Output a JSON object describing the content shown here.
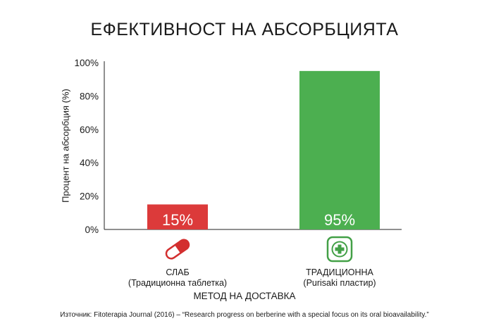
{
  "chart_data": {
    "type": "bar",
    "title": "ЕФЕКТИВНОСТ НА АБСОРБЦИЯТА",
    "xlabel": "МЕТОД НА ДОСТАВКА",
    "ylabel": "Процент на абсорбция (%)",
    "ylim": [
      0,
      100
    ],
    "yticks": [
      "0%",
      "20%",
      "40%",
      "60%",
      "80%",
      "100%"
    ],
    "ytick_values": [
      0,
      20,
      40,
      60,
      80,
      100
    ],
    "grid": false,
    "categories": [
      {
        "line1": "СЛАБ",
        "line2": "(Традиционна таблетка)",
        "icon": "pill-capsule-icon"
      },
      {
        "line1": "ТРАДИЦИОННА",
        "line2": "(Purisaki пластир)",
        "icon": "medical-cross-patch-icon"
      }
    ],
    "values": [
      15,
      95
    ],
    "data_labels": [
      "15%",
      "95%"
    ],
    "colors": [
      "#dc3a3a",
      "#4caf50"
    ]
  },
  "source": "Източник: Fitoterapia Journal (2016) – “Research progress on berberine with a special focus on its oral bioavailability.”"
}
